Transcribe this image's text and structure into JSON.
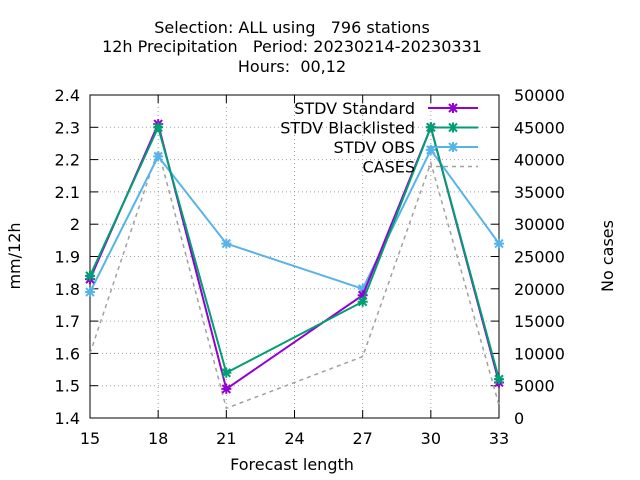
{
  "title_lines": [
    "Selection: ALL using   796 stations",
    "12h Precipitation   Period: 20230214-20230331",
    "Hours:  00,12"
  ],
  "chart_data": {
    "type": "line",
    "xlabel": "Forecast length",
    "ylabel": "mm/12h",
    "y2label": "No cases",
    "xlim": [
      15,
      33
    ],
    "ylim": [
      1.4,
      2.4
    ],
    "y2lim": [
      0,
      50000
    ],
    "xticks": [
      "15",
      "18",
      "21",
      "24",
      "27",
      "30",
      "33"
    ],
    "yticks": [
      "1.4",
      "1.5",
      "1.6",
      "1.7",
      "1.8",
      "1.9",
      "2",
      "2.1",
      "2.2",
      "2.3",
      "2.4"
    ],
    "y2ticks": [
      "0",
      "5000",
      "10000",
      "15000",
      "20000",
      "25000",
      "30000",
      "35000",
      "40000",
      "45000",
      "50000"
    ],
    "grid": true,
    "legend_position": "top-right",
    "x": [
      15,
      18,
      21,
      27,
      30,
      33
    ],
    "series": [
      {
        "name": "STDV Standard",
        "color": "#9400d3",
        "marker": "x-star",
        "axis": "y1",
        "dashed": false,
        "values": [
          1.83,
          2.31,
          1.49,
          1.78,
          2.3,
          1.51
        ]
      },
      {
        "name": "STDV Blacklisted",
        "color": "#009e73",
        "marker": "x-star",
        "axis": "y1",
        "dashed": false,
        "values": [
          1.84,
          2.3,
          1.54,
          1.76,
          2.3,
          1.52
        ]
      },
      {
        "name": "STDV OBS",
        "color": "#56b4e9",
        "marker": "x-star",
        "axis": "y1",
        "dashed": false,
        "values": [
          1.79,
          2.21,
          1.94,
          1.8,
          2.23,
          1.94
        ]
      },
      {
        "name": "CASES",
        "color": "#a0a0a0",
        "marker": "none",
        "axis": "y2",
        "dashed": true,
        "values": [
          10000,
          41500,
          1500,
          9500,
          39500,
          2000
        ]
      }
    ]
  }
}
